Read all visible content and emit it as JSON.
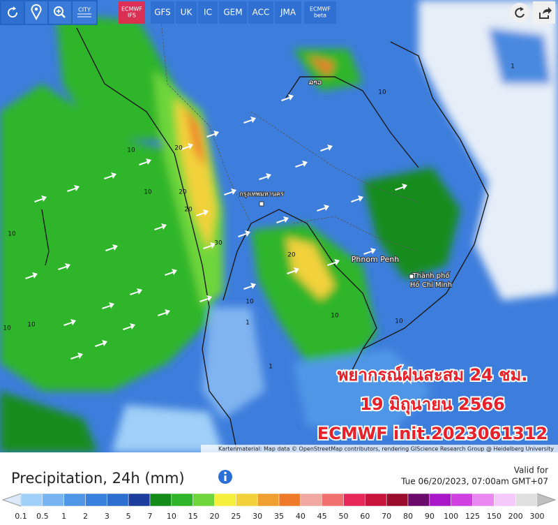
{
  "toolbar": {
    "city_button": "CITY",
    "models": [
      {
        "lines": [
          "ECMWF",
          "IFS"
        ],
        "active": true
      },
      {
        "lines": [
          "GFS"
        ],
        "active": false
      },
      {
        "lines": [
          "UK"
        ],
        "active": false
      },
      {
        "lines": [
          "IC"
        ],
        "active": false
      },
      {
        "lines": [
          "GEM"
        ],
        "active": false
      },
      {
        "lines": [
          "ACC"
        ],
        "active": false
      },
      {
        "lines": [
          "JMA"
        ],
        "active": false
      },
      {
        "lines": [
          "ECMWF",
          "beta"
        ],
        "active": false
      }
    ]
  },
  "map": {
    "cities": [
      "กรุงเทพมหานคร",
      "Phnom Penh",
      "Thành phố",
      "Hồ Chí Minh",
      "ລາວ"
    ],
    "contour_labels": [
      "10",
      "10",
      "20",
      "10",
      "20",
      "30",
      "20",
      "10",
      "1",
      "10",
      "10",
      "1",
      "10",
      "10",
      "20",
      "10",
      "1"
    ],
    "overlay": [
      "พยากรณ์ฝนสะสม 24 ชม.",
      "19 มิถุนายน 2566",
      "ECMWF init.2023061312"
    ],
    "attribution": "Kartenmaterial: Map data © OpenStreetMap contributors, rendering GIScience Research Group @ Heidelberg University"
  },
  "footer": {
    "title": "Precipitation, 24h (mm)",
    "valid_label": "Valid for",
    "valid_time": "Tue 06/20/2023, 07:00am GMT+07"
  },
  "legend": {
    "labels": [
      "0.1",
      "0.5",
      "1",
      "2",
      "3",
      "5",
      "7",
      "10",
      "15",
      "20",
      "25",
      "30",
      "35",
      "40",
      "45",
      "50",
      "60",
      "70",
      "80",
      "90",
      "100",
      "125",
      "150",
      "200",
      "300"
    ],
    "colors": [
      "#a0d0f8",
      "#78b4f0",
      "#4f97e6",
      "#3a80dd",
      "#2f6fd0",
      "#1a3d9e",
      "#148c1a",
      "#2fb52a",
      "#6ed63a",
      "#f5f03c",
      "#f2d23a",
      "#f0a030",
      "#ee7a2a",
      "#f0a8a0",
      "#f07070",
      "#e8285a",
      "#c8143c",
      "#9a0a2a",
      "#6a0a6a",
      "#a818c8",
      "#d040e0",
      "#e888f0",
      "#f4c8f8",
      "#e0e0e0"
    ],
    "low_color": "#dce9f8",
    "high_color": "#c0c0c0"
  }
}
